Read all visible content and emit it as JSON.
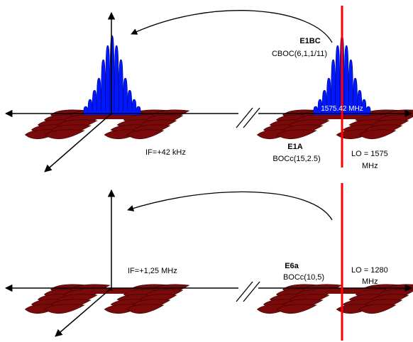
{
  "colors": {
    "axis": "#000000",
    "lo_line": "#ff0000",
    "signal_blue": "#0018ff",
    "signal_blue_edge": "#00007a",
    "lobes_red": "#7a0a0a",
    "lobes_red_edge": "#3a0000"
  },
  "top_panel": {
    "e1bc_name": "E1BC",
    "e1bc_mod": "CBOC(6,1,1/11)",
    "carrier_freq": "1575.42 MHz",
    "e1a_name": "E1A",
    "e1a_mod": "BOCc(15,2.5)",
    "if_label": "IF=+42 kHz",
    "lo_label_1": "LO = 1575",
    "lo_label_2": "MHz"
  },
  "bottom_panel": {
    "e6a_name": "E6a",
    "e6a_mod": "BOCc(10,5)",
    "if_label": "IF=+1,25 MHz",
    "lo_label_1": "LO = 1280",
    "lo_label_2": "MHz"
  }
}
